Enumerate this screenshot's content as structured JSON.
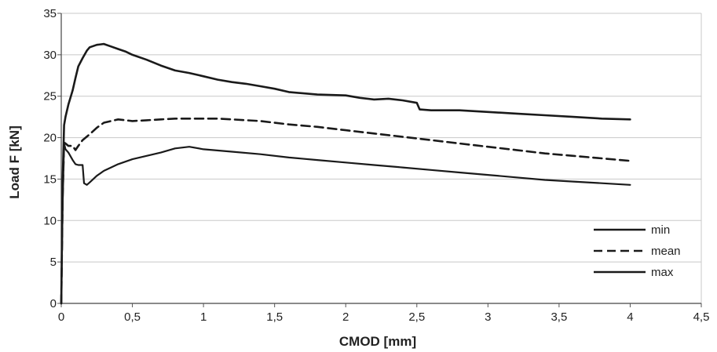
{
  "chart_data": {
    "type": "line",
    "xlabel": "CMOD [mm]",
    "ylabel": "Load F [kN]",
    "xlim": [
      0,
      4.5
    ],
    "ylim": [
      0,
      35
    ],
    "xticks": [
      "0",
      "0,5",
      "1",
      "1,5",
      "2",
      "2,5",
      "3",
      "3,5",
      "4",
      "4,5"
    ],
    "yticks": [
      "0",
      "5",
      "10",
      "15",
      "20",
      "25",
      "30",
      "35"
    ],
    "grid": "horizontal",
    "legend_position": "bottom-right",
    "series": [
      {
        "name": "min",
        "style": "solid",
        "x": [
          0,
          0.01,
          0.02,
          0.03,
          0.05,
          0.08,
          0.1,
          0.12,
          0.15,
          0.16,
          0.18,
          0.2,
          0.25,
          0.3,
          0.35,
          0.4,
          0.5,
          0.6,
          0.7,
          0.8,
          0.9,
          1.0,
          1.2,
          1.4,
          1.6,
          1.8,
          2.0,
          2.2,
          2.4,
          2.6,
          2.8,
          3.0,
          3.2,
          3.4,
          3.6,
          3.8,
          4.0
        ],
        "y": [
          0,
          12,
          19.3,
          18.6,
          18.2,
          17.3,
          16.8,
          16.7,
          16.7,
          14.5,
          14.3,
          14.6,
          15.4,
          16.0,
          16.4,
          16.8,
          17.4,
          17.8,
          18.2,
          18.7,
          18.9,
          18.6,
          18.3,
          18.0,
          17.6,
          17.3,
          17.0,
          16.7,
          16.4,
          16.1,
          15.8,
          15.5,
          15.2,
          14.9,
          14.7,
          14.5,
          14.3
        ]
      },
      {
        "name": "mean",
        "style": "dashed",
        "x": [
          0,
          0.01,
          0.02,
          0.03,
          0.05,
          0.08,
          0.1,
          0.12,
          0.15,
          0.2,
          0.25,
          0.3,
          0.4,
          0.5,
          0.6,
          0.7,
          0.8,
          0.9,
          1.0,
          1.1,
          1.2,
          1.4,
          1.6,
          1.8,
          2.0,
          2.2,
          2.4,
          2.6,
          2.8,
          3.0,
          3.2,
          3.4,
          3.6,
          3.8,
          4.0
        ],
        "y": [
          0,
          13,
          19.4,
          19.3,
          19.0,
          19.0,
          18.5,
          19.0,
          19.7,
          20.4,
          21.2,
          21.8,
          22.2,
          22.0,
          22.1,
          22.2,
          22.3,
          22.3,
          22.3,
          22.3,
          22.2,
          22.0,
          21.6,
          21.3,
          20.9,
          20.5,
          20.1,
          19.7,
          19.3,
          18.9,
          18.5,
          18.1,
          17.8,
          17.5,
          17.2
        ]
      },
      {
        "name": "max",
        "style": "solid",
        "x": [
          0,
          0.01,
          0.02,
          0.03,
          0.05,
          0.08,
          0.1,
          0.12,
          0.15,
          0.18,
          0.2,
          0.25,
          0.3,
          0.35,
          0.4,
          0.45,
          0.5,
          0.6,
          0.7,
          0.8,
          0.9,
          1.0,
          1.1,
          1.2,
          1.3,
          1.4,
          1.5,
          1.6,
          1.8,
          2.0,
          2.1,
          2.2,
          2.3,
          2.4,
          2.5,
          2.52,
          2.6,
          2.8,
          3.0,
          3.2,
          3.4,
          3.6,
          3.8,
          4.0
        ],
        "y": [
          0,
          15,
          21.5,
          22.5,
          24.0,
          25.7,
          27.2,
          28.6,
          29.6,
          30.5,
          30.9,
          31.2,
          31.3,
          31.0,
          30.7,
          30.4,
          30.0,
          29.4,
          28.7,
          28.1,
          27.8,
          27.4,
          27.0,
          26.7,
          26.5,
          26.2,
          25.9,
          25.5,
          25.2,
          25.1,
          24.8,
          24.6,
          24.7,
          24.5,
          24.2,
          23.4,
          23.3,
          23.3,
          23.1,
          22.9,
          22.7,
          22.5,
          22.3,
          22.2
        ]
      }
    ]
  }
}
